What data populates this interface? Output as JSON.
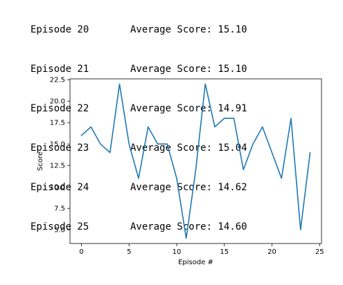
{
  "log": {
    "lines": [
      {
        "episode": "Episode 20",
        "score": "Average Score: 15.10"
      },
      {
        "episode": "Episode 21",
        "score": "Average Score: 15.10"
      },
      {
        "episode": "Episode 22",
        "score": "Average Score: 14.91"
      },
      {
        "episode": "Episode 23",
        "score": "Average Score: 15.04"
      },
      {
        "episode": "Episode 24",
        "score": "Average Score: 14.62"
      },
      {
        "episode": "Episode 25",
        "score": "Average Score: 14.60"
      }
    ]
  },
  "chart_data": {
    "type": "line",
    "xlabel": "Episode #",
    "ylabel": "Score",
    "xlim": [
      -1.2,
      25.2
    ],
    "ylim": [
      3.4,
      22.6
    ],
    "xticks": [
      0,
      5,
      10,
      15,
      20,
      25
    ],
    "yticks": [
      5.0,
      7.5,
      10.0,
      12.5,
      15.0,
      17.5,
      20.0,
      22.5
    ],
    "ytick_labels": [
      "5.0",
      "7.5",
      "10.0",
      "12.5",
      "15.0",
      "17.5",
      "20.0",
      "22.5"
    ],
    "grid": false,
    "series": [
      {
        "color": "#1f77b4",
        "x": [
          0,
          1,
          2,
          3,
          4,
          5,
          6,
          7,
          8,
          9,
          10,
          11,
          12,
          13,
          14,
          15,
          16,
          17,
          18,
          19,
          20,
          21,
          22,
          23,
          24
        ],
        "y": [
          16,
          17,
          15,
          14,
          22,
          15,
          11,
          17,
          15,
          15,
          11,
          4,
          12,
          22,
          17,
          18,
          18,
          12,
          15,
          17,
          14,
          11,
          18,
          5,
          14
        ]
      }
    ]
  }
}
